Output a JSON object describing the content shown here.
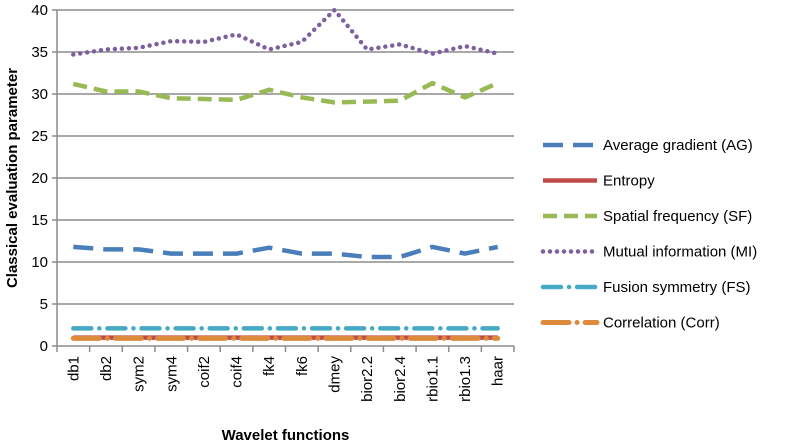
{
  "chart_data": {
    "type": "line",
    "xlabel": "Wavelet functions",
    "ylabel": "Classical  evaluation  parameter",
    "categories": [
      "db1",
      "db2",
      "sym2",
      "sym4",
      "coif2",
      "coif4",
      "fk4",
      "fk6",
      "dmey",
      "bior2.2",
      "bior2.4",
      "rbio1.1",
      "rbio1.3",
      "haar"
    ],
    "ylim": [
      0,
      40
    ],
    "yticks": [
      0,
      5,
      10,
      15,
      20,
      25,
      30,
      35,
      40
    ],
    "grid": "horizontal",
    "legend_position": "right",
    "series": [
      {
        "name": "Average gradient (AG)",
        "color": "#4a7ebb",
        "style": "long-dash",
        "values": [
          11.8,
          11.5,
          11.5,
          11.0,
          11.0,
          11.0,
          11.7,
          11.0,
          11.0,
          10.6,
          10.6,
          11.8,
          11.0,
          11.8
        ]
      },
      {
        "name": "Entropy",
        "color": "#be4b48",
        "style": "solid",
        "values": [
          1.0,
          1.0,
          1.0,
          1.0,
          1.0,
          1.0,
          1.0,
          1.0,
          1.0,
          1.0,
          1.0,
          1.0,
          1.0,
          1.0
        ]
      },
      {
        "name": "Spatial frequency (SF)",
        "color": "#98b954",
        "style": "dash",
        "values": [
          31.2,
          30.3,
          30.3,
          29.5,
          29.4,
          29.3,
          30.5,
          29.6,
          29.0,
          29.1,
          29.2,
          31.3,
          29.6,
          31.3
        ]
      },
      {
        "name": "Mutual information (MI)",
        "color": "#7d60a0",
        "style": "dot",
        "values": [
          34.7,
          35.3,
          35.5,
          36.3,
          36.2,
          37.1,
          35.3,
          36.2,
          40.0,
          35.3,
          35.9,
          34.8,
          35.7,
          34.8
        ]
      },
      {
        "name": "Fusion symmetry (FS)",
        "color": "#46aac5",
        "style": "dash-dot",
        "values": [
          2.1,
          2.1,
          2.1,
          2.1,
          2.1,
          2.1,
          2.1,
          2.1,
          2.1,
          2.1,
          2.1,
          2.1,
          2.1,
          2.1
        ]
      },
      {
        "name": "Correlation (Corr)",
        "color": "#dd8a3d",
        "style": "long-dash-dot",
        "values": [
          0.9,
          0.9,
          0.9,
          0.9,
          0.9,
          0.9,
          0.9,
          0.9,
          0.9,
          0.9,
          0.9,
          0.9,
          0.9,
          0.9
        ]
      }
    ]
  }
}
